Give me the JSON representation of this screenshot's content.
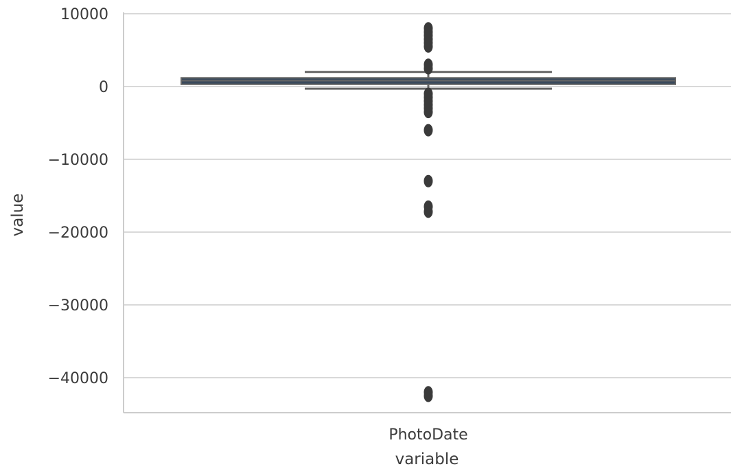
{
  "chart_data": {
    "type": "box",
    "xlabel": "variable",
    "ylabel": "value",
    "categories": [
      "PhotoDate"
    ],
    "ylim": [
      -45000,
      10000
    ],
    "y_ticks": [
      10000,
      0,
      -10000,
      -20000,
      -30000,
      -40000
    ],
    "y_tick_labels": [
      "10000",
      "0",
      "−10000",
      "−20000",
      "−30000",
      "−40000"
    ],
    "grid": "horizontal",
    "boxes": [
      {
        "category": "PhotoDate",
        "q1": 300,
        "median": 800,
        "q3": 1200,
        "whisker_low": -300,
        "whisker_high": 2000,
        "outliers": [
          8000,
          7500,
          7000,
          6500,
          6000,
          5500,
          3000,
          2500,
          -1000,
          -1500,
          -2000,
          -2500,
          -3000,
          -3500,
          -6000,
          -13000,
          -16500,
          -17200,
          -42000,
          -42500
        ]
      }
    ],
    "colors": {
      "box_fill": "#3a4a5c",
      "line": "#666666",
      "outlier": "#3a3a3a",
      "grid": "#d9d9d9",
      "spine": "#cccccc"
    }
  }
}
